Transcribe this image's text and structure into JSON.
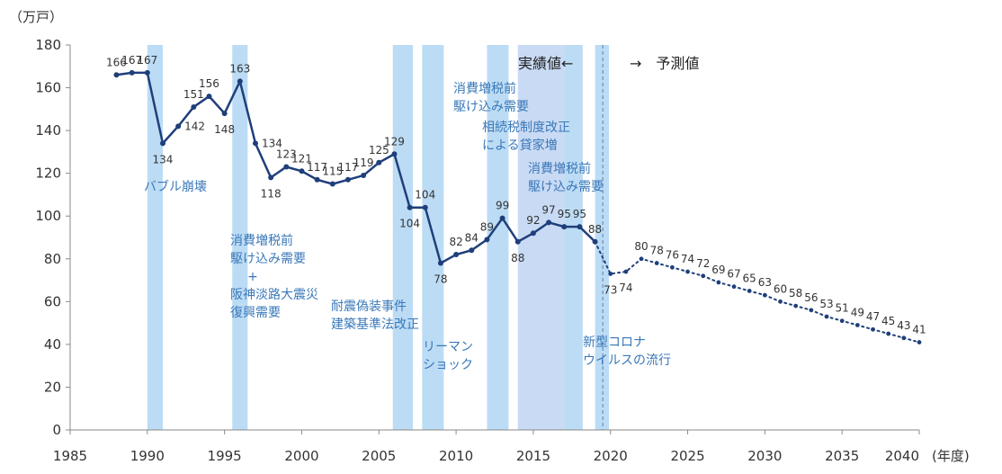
{
  "chart_data": {
    "type": "line",
    "y_unit": "（万戸）",
    "x_unit": "(年度)",
    "ylim": [
      0,
      180
    ],
    "y_ticks": [
      0,
      20,
      40,
      60,
      80,
      100,
      120,
      140,
      160,
      180
    ],
    "xlim": [
      1985,
      2040
    ],
    "x_ticks": [
      1985,
      1990,
      1995,
      2000,
      2005,
      2010,
      2015,
      2020,
      2025,
      2030,
      2035,
      2040
    ],
    "grid": false,
    "series": [
      {
        "role": "actual",
        "points": [
          {
            "x": 1988,
            "y": 166
          },
          {
            "x": 1989,
            "y": 167
          },
          {
            "x": 1990,
            "y": 167
          },
          {
            "x": 1991,
            "y": 134
          },
          {
            "x": 1992,
            "y": 142
          },
          {
            "x": 1993,
            "y": 151
          },
          {
            "x": 1994,
            "y": 156
          },
          {
            "x": 1995,
            "y": 148
          },
          {
            "x": 1996,
            "y": 163
          },
          {
            "x": 1997,
            "y": 134
          },
          {
            "x": 1998,
            "y": 118
          },
          {
            "x": 1999,
            "y": 123
          },
          {
            "x": 2000,
            "y": 121
          },
          {
            "x": 2001,
            "y": 117
          },
          {
            "x": 2002,
            "y": 115
          },
          {
            "x": 2003,
            "y": 117
          },
          {
            "x": 2004,
            "y": 119
          },
          {
            "x": 2005,
            "y": 125
          },
          {
            "x": 2006,
            "y": 129
          },
          {
            "x": 2007,
            "y": 104
          },
          {
            "x": 2008,
            "y": 104
          },
          {
            "x": 2009,
            "y": 78
          },
          {
            "x": 2010,
            "y": 82
          },
          {
            "x": 2011,
            "y": 84
          },
          {
            "x": 2012,
            "y": 89
          },
          {
            "x": 2013,
            "y": 99
          },
          {
            "x": 2014,
            "y": 88
          },
          {
            "x": 2015,
            "y": 92
          },
          {
            "x": 2016,
            "y": 97
          },
          {
            "x": 2017,
            "y": 95
          },
          {
            "x": 2018,
            "y": 95
          },
          {
            "x": 2019,
            "y": 88
          }
        ]
      },
      {
        "role": "forecast",
        "points": [
          {
            "x": 2020,
            "y": 73
          },
          {
            "x": 2021,
            "y": 74
          },
          {
            "x": 2022,
            "y": 80
          },
          {
            "x": 2023,
            "y": 78
          },
          {
            "x": 2024,
            "y": 76
          },
          {
            "x": 2025,
            "y": 74
          },
          {
            "x": 2026,
            "y": 72
          },
          {
            "x": 2027,
            "y": 69
          },
          {
            "x": 2028,
            "y": 67
          },
          {
            "x": 2029,
            "y": 65
          },
          {
            "x": 2030,
            "y": 63
          },
          {
            "x": 2031,
            "y": 60
          },
          {
            "x": 2032,
            "y": 58
          },
          {
            "x": 2033,
            "y": 56
          },
          {
            "x": 2034,
            "y": 53
          },
          {
            "x": 2035,
            "y": 51
          },
          {
            "x": 2036,
            "y": 49
          },
          {
            "x": 2037,
            "y": 47
          },
          {
            "x": 2038,
            "y": 45
          },
          {
            "x": 2039,
            "y": 43
          },
          {
            "x": 2040,
            "y": 41
          }
        ]
      }
    ],
    "label_offsets": {
      "1988": "above",
      "1989": "above",
      "1990": "above",
      "1991": "below",
      "1992": "right",
      "1993": "above",
      "1994": "above",
      "1995": "below",
      "1996": "above",
      "1997": "right",
      "1998": "below",
      "1999": "above",
      "2000": "above",
      "2001": "above",
      "2002": "above",
      "2003": "above",
      "2004": "above",
      "2005": "above",
      "2006": "above",
      "2007": "below",
      "2008": "above",
      "2009": "below",
      "2010": "above",
      "2011": "above",
      "2012": "above",
      "2013": "above",
      "2014": "below",
      "2015": "above",
      "2016": "above",
      "2017": "above",
      "2018": "above",
      "2019": "above",
      "2020": "below",
      "2021": "below",
      "2022": "above"
    },
    "highlight_periods": [
      {
        "from": 1990,
        "to": 1991
      },
      {
        "from": 1995.5,
        "to": 1996.5
      },
      {
        "from": 2005.9,
        "to": 2007.2
      },
      {
        "from": 2007.8,
        "to": 2009.2
      },
      {
        "from": 2012,
        "to": 2013.4
      },
      {
        "from": 2014,
        "to": 2017
      },
      {
        "from": 2017,
        "to": 2018.2
      },
      {
        "from": 2019,
        "to": 2019.9
      }
    ],
    "highlight_color": "#bcdcf5",
    "highlight_color_alt": "#c9daf4",
    "line_color": "#1f3f7a",
    "annotation_color": "#3a78b8",
    "divider_year": 2019.5,
    "divider_label_actual": "実績値←",
    "divider_label_forecast": "→　予測値",
    "annotations": [
      {
        "id": "bubble",
        "lines": [
          "バブル崩壊"
        ]
      },
      {
        "id": "tax1997",
        "lines": [
          "消費増税前",
          "駆け込み需要",
          "+",
          "阪神淡路大震災",
          "復興需要"
        ]
      },
      {
        "id": "quake",
        "lines": [
          "耐震偽装事件",
          "建築基準法改正"
        ]
      },
      {
        "id": "lehman",
        "lines": [
          "リーマン",
          "ショック"
        ]
      },
      {
        "id": "tax2014",
        "lines": [
          "消費増税前",
          "駆け込み需要"
        ]
      },
      {
        "id": "inherit",
        "lines": [
          "相続税制度改正",
          "による貸家増"
        ]
      },
      {
        "id": "tax2019",
        "lines": [
          "消費増税前",
          "駆け込み需要"
        ]
      },
      {
        "id": "corona",
        "lines": [
          "新型コロナ",
          "ウイルスの流行"
        ]
      }
    ]
  }
}
